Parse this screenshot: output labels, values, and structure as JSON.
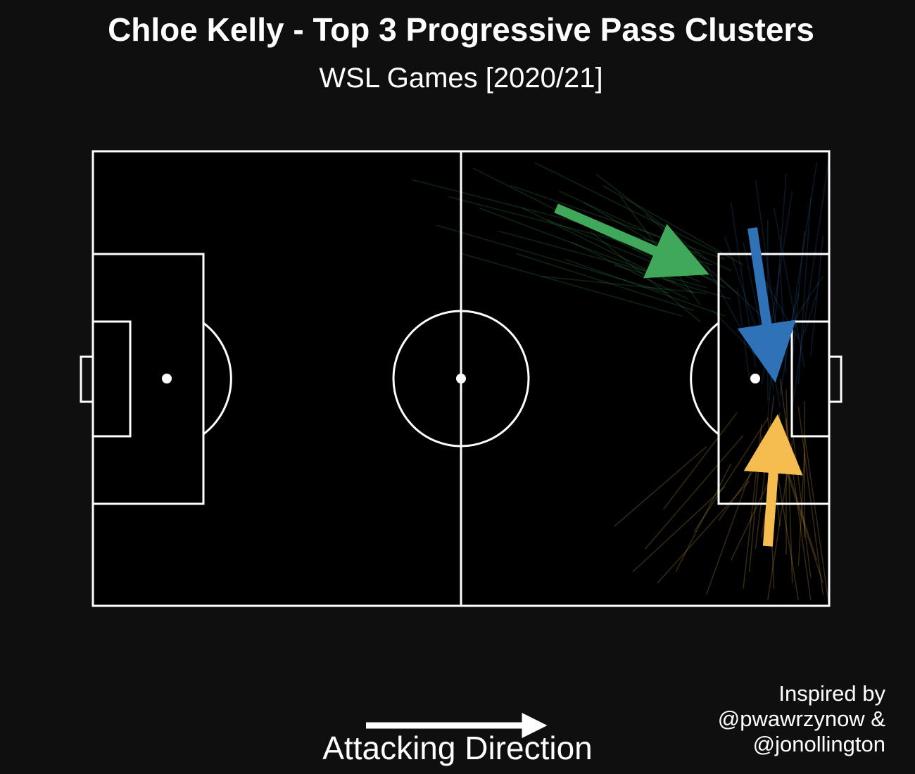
{
  "header": {
    "title": "Chloe Kelly - Top 3 Progressive Pass Clusters",
    "subtitle": "WSL Games [2020/21]"
  },
  "footer": {
    "direction_label": "Attacking Direction",
    "credit_lines": [
      "Inspired by",
      "@pwawrzynow &",
      "@jonollington"
    ]
  },
  "colors": {
    "background": "#0f0f0f",
    "pitch": "#000000",
    "lines": "#ffffff",
    "cluster_green": "#3fa85b",
    "cluster_blue": "#2f72b8",
    "cluster_yellow": "#f5bd4f"
  },
  "chart_data": {
    "type": "pass-map",
    "pitch": {
      "x_range": [
        0,
        120
      ],
      "y_range": [
        0,
        80
      ],
      "attacking_direction": "left-to-right"
    },
    "clusters": [
      {
        "color": "#3fa85b",
        "centroid": {
          "x_start": 75.5,
          "y_start": 70.0,
          "x_end": 99.0,
          "y_end": 59.0
        },
        "passes": [
          [
            52,
            75,
            99,
            62
          ],
          [
            58,
            72,
            101,
            60
          ],
          [
            62,
            77,
            97,
            58
          ],
          [
            66,
            66,
            100,
            56
          ],
          [
            68,
            74,
            103,
            61
          ],
          [
            70,
            70,
            98,
            55
          ],
          [
            72,
            78,
            102,
            62
          ],
          [
            74,
            68,
            99,
            57
          ],
          [
            76,
            73,
            104,
            59
          ],
          [
            78,
            64,
            97,
            54
          ],
          [
            80,
            71,
            101,
            58
          ],
          [
            82,
            76,
            100,
            61
          ],
          [
            84,
            67,
            103,
            56
          ],
          [
            86,
            72,
            99,
            53
          ],
          [
            88,
            63,
            102,
            57
          ],
          [
            63,
            70,
            95,
            57
          ],
          [
            69,
            62,
            98,
            52
          ],
          [
            73,
            58,
            100,
            55
          ],
          [
            77,
            61,
            103,
            51
          ],
          [
            81,
            66,
            99,
            50
          ],
          [
            56,
            67,
            94,
            55
          ],
          [
            60,
            62,
            96,
            51
          ],
          [
            85,
            60,
            104,
            54
          ],
          [
            83,
            74,
            106,
            60
          ],
          [
            90,
            69,
            105,
            55
          ]
        ]
      },
      {
        "color": "#2f72b8",
        "centroid": {
          "x_start": 107.5,
          "y_start": 66.5,
          "x_end": 111.0,
          "y_end": 41.0
        },
        "passes": [
          [
            104,
            71,
            108,
            42
          ],
          [
            106,
            64,
            111,
            38
          ],
          [
            108,
            75,
            112,
            44
          ],
          [
            110,
            68,
            110,
            36
          ],
          [
            112,
            60,
            113,
            41
          ],
          [
            114,
            73,
            109,
            39
          ],
          [
            116,
            66,
            114,
            43
          ],
          [
            118,
            78,
            112,
            37
          ],
          [
            119,
            58,
            111,
            45
          ],
          [
            105,
            56,
            107,
            40
          ],
          [
            107,
            62,
            115,
            47
          ],
          [
            109,
            53,
            112,
            35
          ],
          [
            111,
            70,
            116,
            42
          ],
          [
            113,
            76,
            110,
            33
          ],
          [
            115,
            55,
            113,
            46
          ],
          [
            117,
            72,
            115,
            39
          ],
          [
            119,
            65,
            117,
            44
          ],
          [
            103,
            65,
            109,
            46
          ],
          [
            120,
            79,
            114,
            35
          ],
          [
            118,
            55,
            116,
            48
          ],
          [
            100,
            60,
            108,
            44
          ],
          [
            102,
            58,
            112,
            48
          ],
          [
            101,
            52,
            110,
            42
          ]
        ]
      },
      {
        "color": "#f5bd4f",
        "centroid": {
          "x_start": 110.0,
          "y_start": 10.5,
          "x_end": 111.5,
          "y_end": 32.0
        },
        "passes": [
          [
            107,
            6,
            109,
            30
          ],
          [
            109,
            12,
            112,
            34
          ],
          [
            111,
            3,
            110,
            29
          ],
          [
            113,
            9,
            113,
            33
          ],
          [
            115,
            1,
            111,
            27
          ],
          [
            117,
            5,
            114,
            31
          ],
          [
            119,
            2,
            115,
            35
          ],
          [
            118,
            8,
            112,
            28
          ],
          [
            116,
            12,
            116,
            36
          ],
          [
            114,
            4,
            113,
            38
          ],
          [
            112,
            14,
            110,
            33
          ],
          [
            110,
            1,
            114,
            29
          ],
          [
            108,
            10,
            111,
            37
          ],
          [
            106,
            3,
            109,
            32
          ],
          [
            104,
            8,
            112,
            26
          ],
          [
            120,
            0,
            116,
            30
          ],
          [
            119,
            4,
            113,
            24
          ],
          [
            117,
            1,
            112,
            40
          ],
          [
            115,
            7,
            116,
            27
          ],
          [
            100,
            2,
            108,
            26
          ],
          [
            95,
            6,
            104,
            25
          ],
          [
            90,
            10,
            106,
            30
          ],
          [
            85,
            14,
            100,
            28
          ],
          [
            98,
            13,
            110,
            33
          ],
          [
            92,
            4,
            107,
            22
          ],
          [
            102,
            15,
            111,
            29
          ],
          [
            88,
            6,
            103,
            21
          ],
          [
            93,
            17,
            105,
            34
          ]
        ]
      }
    ]
  }
}
